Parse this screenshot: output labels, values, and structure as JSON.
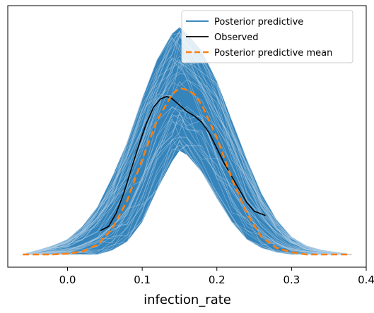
{
  "chart_data": {
    "type": "line",
    "title": "",
    "xlabel": "infection_rate",
    "ylabel": "",
    "xlim": [
      -0.08,
      0.4
    ],
    "ylim": [
      0,
      1.15
    ],
    "x_ticks": [
      0.0,
      0.1,
      0.2,
      0.3,
      0.4
    ],
    "x_tick_labels": [
      "0.0",
      "0.1",
      "0.2",
      "0.3",
      "0.4"
    ],
    "y_ticks": [],
    "grid": false,
    "legend": {
      "position": "top-right",
      "entries": [
        {
          "label": "Posterior predictive",
          "color": "#1f77b4",
          "style": "solid"
        },
        {
          "label": "Observed",
          "color": "#000000",
          "style": "solid"
        },
        {
          "label": "Posterior predictive mean",
          "color": "#ff7f0e",
          "style": "dashed"
        }
      ]
    },
    "series": [
      {
        "name": "Posterior predictive",
        "kind": "band",
        "color": "#1f77b4",
        "x": [
          -0.06,
          -0.04,
          -0.02,
          0.0,
          0.02,
          0.04,
          0.06,
          0.08,
          0.1,
          0.12,
          0.14,
          0.15,
          0.16,
          0.18,
          0.2,
          0.22,
          0.24,
          0.26,
          0.28,
          0.3,
          0.32,
          0.34,
          0.36,
          0.38
        ],
        "lower": [
          0.0,
          0.0,
          0.0,
          0.0,
          0.0,
          0.0,
          0.02,
          0.06,
          0.15,
          0.3,
          0.43,
          0.48,
          0.46,
          0.38,
          0.26,
          0.15,
          0.07,
          0.03,
          0.01,
          0.0,
          0.0,
          0.0,
          0.0,
          0.0
        ],
        "upper": [
          0.0,
          0.02,
          0.04,
          0.07,
          0.13,
          0.22,
          0.36,
          0.52,
          0.72,
          0.9,
          1.02,
          1.05,
          1.02,
          0.94,
          0.8,
          0.62,
          0.44,
          0.28,
          0.16,
          0.08,
          0.04,
          0.02,
          0.01,
          0.0
        ]
      },
      {
        "name": "Observed",
        "kind": "line",
        "color": "#000000",
        "x": [
          0.044,
          0.055,
          0.065,
          0.075,
          0.085,
          0.095,
          0.105,
          0.115,
          0.125,
          0.133,
          0.14,
          0.15,
          0.16,
          0.17,
          0.18,
          0.19,
          0.2,
          0.21,
          0.22,
          0.23,
          0.24,
          0.25,
          0.265
        ],
        "y": [
          0.11,
          0.13,
          0.19,
          0.28,
          0.39,
          0.5,
          0.6,
          0.68,
          0.72,
          0.73,
          0.72,
          0.69,
          0.66,
          0.64,
          0.61,
          0.56,
          0.49,
          0.42,
          0.36,
          0.3,
          0.24,
          0.2,
          0.18
        ]
      },
      {
        "name": "Posterior predictive mean",
        "kind": "line",
        "color": "#ff7f0e",
        "style": "dashed",
        "x": [
          -0.06,
          -0.04,
          -0.02,
          0.0,
          0.02,
          0.04,
          0.06,
          0.08,
          0.1,
          0.12,
          0.14,
          0.15,
          0.16,
          0.17,
          0.18,
          0.2,
          0.22,
          0.24,
          0.26,
          0.28,
          0.3,
          0.32,
          0.34,
          0.36,
          0.38
        ],
        "y": [
          0.0,
          0.0,
          0.0,
          0.004,
          0.014,
          0.045,
          0.12,
          0.25,
          0.44,
          0.62,
          0.74,
          0.77,
          0.76,
          0.74,
          0.69,
          0.54,
          0.35,
          0.19,
          0.08,
          0.03,
          0.01,
          0.0,
          0.0,
          0.0,
          0.0
        ]
      }
    ]
  }
}
